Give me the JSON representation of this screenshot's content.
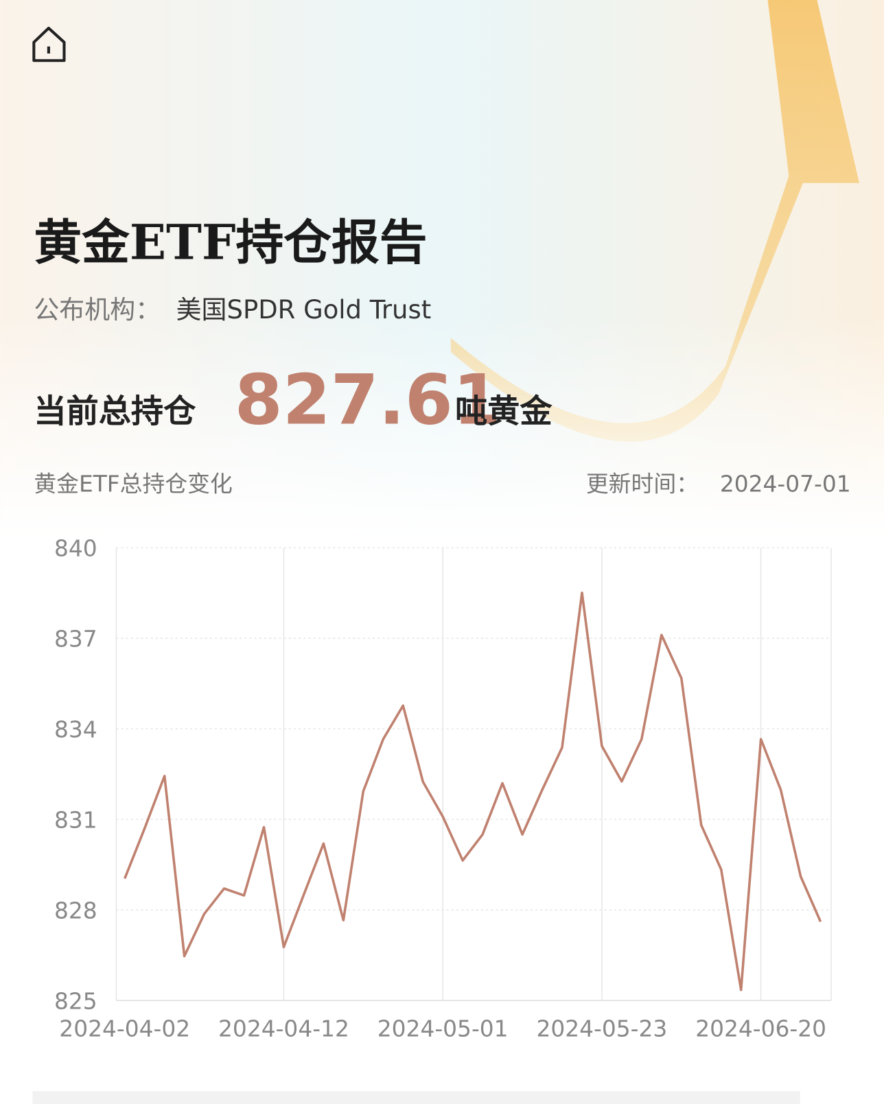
{
  "header": {
    "title": "黄金ETF持仓报告",
    "publisher_label": "公布机构：",
    "publisher": "美国SPDR Gold Trust",
    "holding_label": "当前总持仓",
    "holding_value": "827.61",
    "holding_unit": "吨黄金",
    "chart_caption": "黄金ETF总持仓变化",
    "update_label": "更新时间：",
    "update_date": "2024-07-01"
  },
  "chart_data": {
    "type": "line",
    "categories": [
      "2024-04-02",
      null,
      null,
      null,
      null,
      null,
      null,
      null,
      "2024-04-12",
      null,
      null,
      null,
      null,
      null,
      null,
      null,
      "2024-05-01",
      null,
      null,
      null,
      null,
      null,
      null,
      null,
      "2024-05-23",
      null,
      null,
      null,
      null,
      null,
      null,
      null,
      "2024-06-20",
      null,
      null,
      null
    ],
    "series": [
      {
        "color": "#c0816f",
        "values": [
          829.04,
          830.7,
          832.44,
          826.47,
          827.87,
          828.71,
          828.48,
          830.74,
          826.77,
          828.5,
          830.2,
          827.66,
          831.93,
          833.66,
          834.77,
          832.25,
          831.09,
          829.64,
          830.5,
          832.2,
          830.5,
          831.98,
          833.38,
          838.51,
          833.43,
          832.26,
          833.66,
          837.11,
          835.68,
          830.81,
          829.34,
          825.35,
          833.66,
          831.98,
          829.11,
          827.61
        ]
      }
    ],
    "ylim": [
      825,
      840
    ],
    "yticks": [
      825,
      828,
      831,
      834,
      837,
      840
    ],
    "grid": true
  }
}
